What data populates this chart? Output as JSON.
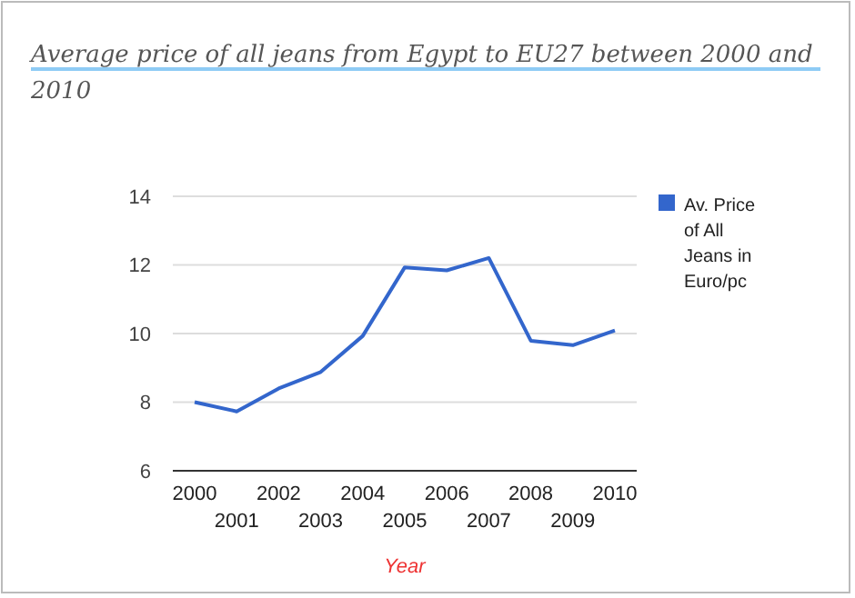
{
  "chart_data": {
    "type": "line",
    "title": "Average price of all jeans from Egypt to EU27 between 2000 and 2010",
    "xlabel": "Year",
    "categories": [
      "2000",
      "2001",
      "2002",
      "2003",
      "2004",
      "2005",
      "2006",
      "2007",
      "2008",
      "2009",
      "2010"
    ],
    "series": [
      {
        "name": "Av. Price of All Jeans in Euro/pc",
        "color": "#3366cc",
        "values": [
          8.0,
          7.73,
          8.4,
          8.88,
          9.93,
          11.93,
          11.84,
          12.2,
          9.79,
          9.66,
          10.09
        ]
      }
    ],
    "ylim": [
      6,
      14
    ],
    "yticks": [
      6,
      8,
      10,
      12,
      14
    ],
    "grid": "y",
    "legend": "right"
  }
}
